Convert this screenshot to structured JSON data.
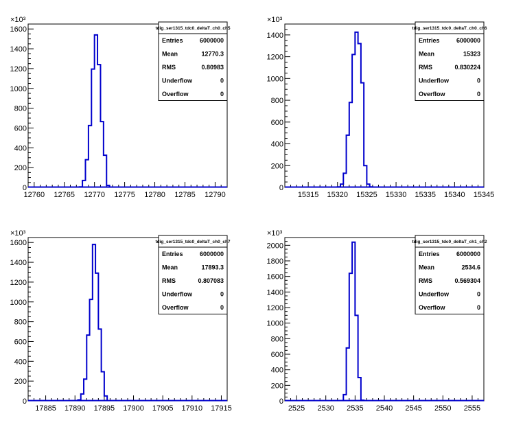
{
  "style": {
    "histogram_color": "#0000cc",
    "frame_color": "#000000",
    "background": "#ffffff"
  },
  "chart_data": [
    {
      "type": "bar",
      "histogram_name": "tdig_ser1315_tdc0_deltaT_ch0_ch5",
      "exponent_label": "×10³",
      "xlim": [
        12759,
        12792
      ],
      "ylim": [
        0,
        1650
      ],
      "x_ticks": [
        12760,
        12765,
        12770,
        12775,
        12780,
        12785,
        12790
      ],
      "y_ticks": [
        0,
        200,
        400,
        600,
        800,
        1000,
        1200,
        1400,
        1600
      ],
      "bin_width": 0.5,
      "bins_x": [
        12767.5,
        12768,
        12768.5,
        12769,
        12769.5,
        12770,
        12770.5,
        12771,
        12771.5,
        12772
      ],
      "values": [
        5,
        70,
        280,
        625,
        1195,
        1540,
        1240,
        665,
        325,
        20
      ],
      "stats": [
        {
          "label": "Entries",
          "value": "6000000"
        },
        {
          "label": "Mean",
          "value": "12770.3"
        },
        {
          "label": "RMS",
          "value": "0.80983"
        },
        {
          "label": "Underflow",
          "value": "0"
        },
        {
          "label": "Overflow",
          "value": "0"
        }
      ]
    },
    {
      "type": "bar",
      "histogram_name": "tdig_ser1315_tdc0_deltaT_ch0_ch6",
      "exponent_label": "×10³",
      "xlim": [
        15311,
        15345
      ],
      "ylim": [
        0,
        1500
      ],
      "x_ticks": [
        15315,
        15320,
        15325,
        15330,
        15335,
        15340,
        15345
      ],
      "y_ticks": [
        0,
        200,
        400,
        600,
        800,
        1000,
        1200,
        1400
      ],
      "bin_width": 0.5,
      "bins_x": [
        15320,
        15320.5,
        15321,
        15321.5,
        15322,
        15322.5,
        15323,
        15323.5,
        15324,
        15324.5,
        15325,
        15325.5
      ],
      "values": [
        5,
        30,
        130,
        480,
        780,
        1220,
        1425,
        1320,
        960,
        200,
        30,
        5
      ],
      "stats": [
        {
          "label": "Entries",
          "value": "6000000"
        },
        {
          "label": "Mean",
          "value": "15323"
        },
        {
          "label": "RMS",
          "value": "0.830224"
        },
        {
          "label": "Underflow",
          "value": "0"
        },
        {
          "label": "Overflow",
          "value": "0"
        }
      ]
    },
    {
      "type": "bar",
      "histogram_name": "tdig_ser1315_tdc0_deltaT_ch0_ch7",
      "exponent_label": "×10³",
      "xlim": [
        17882,
        17916
      ],
      "ylim": [
        0,
        1650
      ],
      "x_ticks": [
        17885,
        17890,
        17895,
        17900,
        17905,
        17910,
        17915
      ],
      "y_ticks": [
        0,
        200,
        400,
        600,
        800,
        1000,
        1200,
        1400,
        1600
      ],
      "bin_width": 0.5,
      "bins_x": [
        17890.5,
        17891,
        17891.5,
        17892,
        17892.5,
        17893,
        17893.5,
        17894,
        17894.5,
        17895
      ],
      "values": [
        10,
        70,
        220,
        665,
        1025,
        1580,
        1290,
        725,
        295,
        50
      ],
      "stats": [
        {
          "label": "Entries",
          "value": "6000000"
        },
        {
          "label": "Mean",
          "value": "17893.3"
        },
        {
          "label": "RMS",
          "value": "0.807083"
        },
        {
          "label": "Underflow",
          "value": "0"
        },
        {
          "label": "Overflow",
          "value": "0"
        }
      ]
    },
    {
      "type": "bar",
      "histogram_name": "tdig_ser1315_tdc0_deltaT_ch1_ch2",
      "exponent_label": "×10³",
      "xlim": [
        2523,
        2557
      ],
      "ylim": [
        0,
        2100
      ],
      "x_ticks": [
        2525,
        2530,
        2535,
        2540,
        2545,
        2550,
        2555
      ],
      "y_ticks": [
        0,
        200,
        400,
        600,
        800,
        1000,
        1200,
        1400,
        1600,
        1800,
        2000
      ],
      "bin_width": 0.5,
      "bins_x": [
        2533,
        2533.5,
        2534,
        2534.5,
        2535,
        2535.5,
        2536
      ],
      "values": [
        80,
        680,
        1640,
        2040,
        1100,
        300,
        10
      ],
      "stats": [
        {
          "label": "Entries",
          "value": "6000000"
        },
        {
          "label": "Mean",
          "value": "2534.6"
        },
        {
          "label": "RMS",
          "value": "0.569304"
        },
        {
          "label": "Underflow",
          "value": "0"
        },
        {
          "label": "Overflow",
          "value": "0"
        }
      ]
    }
  ]
}
